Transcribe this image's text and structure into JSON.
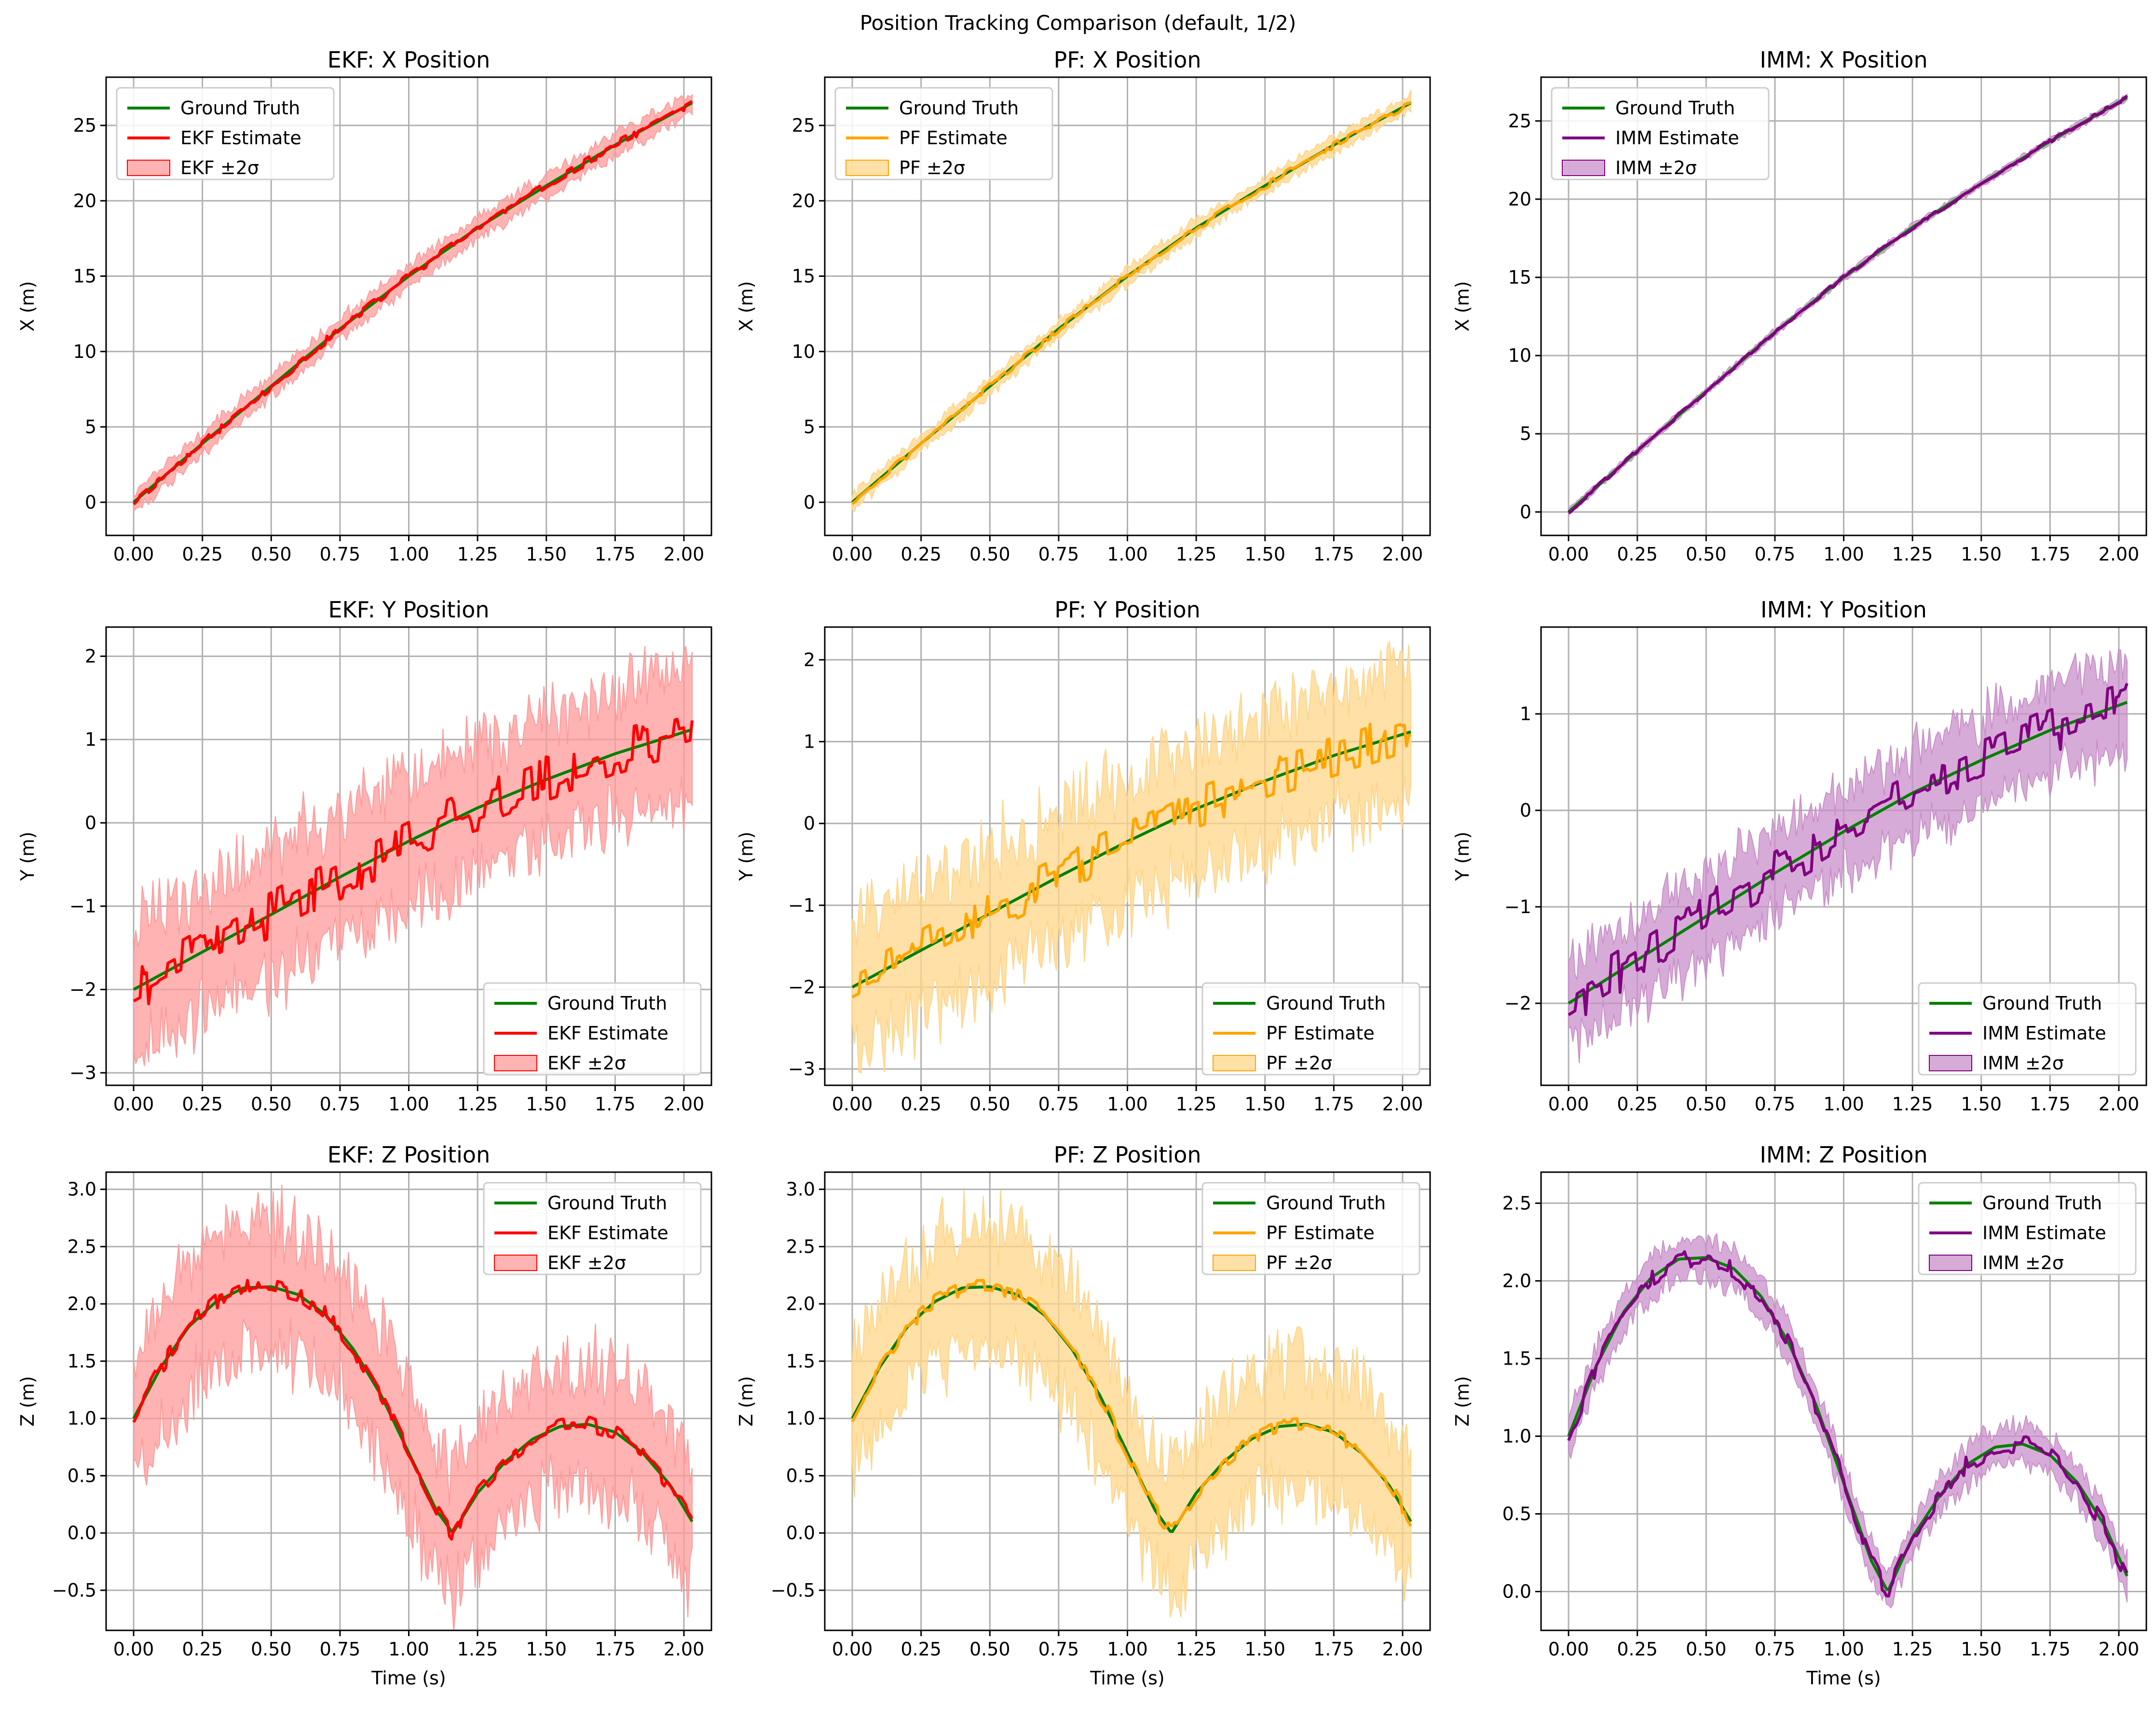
{
  "figure": {
    "suptitle": "Position Tracking Comparison (default, 1/2)"
  },
  "colors": {
    "ground_truth": "#008000",
    "EKF": "#ff0000",
    "EKF_band": "#ff9a9a",
    "PF": "#ffa500",
    "PF_band": "#ffd58a",
    "IMM": "#800080",
    "IMM_band": "#c98fc9"
  },
  "chart_data": [
    {
      "type": "line",
      "title": "EKF: X Position",
      "filter": "EKF",
      "axis": "x",
      "xlabel": "",
      "ylabel": "X (m)",
      "xlim": [
        -0.1,
        2.1
      ],
      "ylim": [
        -2.2,
        28.2
      ],
      "xticks": [
        "0.00",
        "0.25",
        "0.50",
        "0.75",
        "1.00",
        "1.25",
        "1.50",
        "1.75",
        "2.00"
      ],
      "yticks": [
        "0",
        "5",
        "10",
        "15",
        "20",
        "25"
      ],
      "legend_loc": "upper-left",
      "legend": [
        "Ground Truth",
        "EKF Estimate",
        "EKF ±2σ"
      ],
      "series": [
        {
          "name": "Ground Truth",
          "kind": "line",
          "x": [
            0,
            0.25,
            0.5,
            0.75,
            1.0,
            1.25,
            1.5,
            1.75,
            2.03
          ],
          "y": [
            0,
            3.9,
            7.7,
            11.5,
            15.0,
            18.2,
            21.0,
            23.7,
            26.5
          ]
        },
        {
          "name": "EKF Estimate",
          "kind": "noisy",
          "base": "Ground Truth",
          "noise": 0.25,
          "seed": 11
        },
        {
          "name": "EKF ±2σ",
          "kind": "band",
          "base": "Ground Truth",
          "halfwidth": 0.7,
          "seed": 12
        }
      ]
    },
    {
      "type": "line",
      "title": "PF: X Position",
      "filter": "PF",
      "axis": "x",
      "xlabel": "",
      "ylabel": "X (m)",
      "xlim": [
        -0.1,
        2.1
      ],
      "ylim": [
        -2.2,
        28.2
      ],
      "xticks": [
        "0.00",
        "0.25",
        "0.50",
        "0.75",
        "1.00",
        "1.25",
        "1.50",
        "1.75",
        "2.00"
      ],
      "yticks": [
        "0",
        "5",
        "10",
        "15",
        "20",
        "25"
      ],
      "legend_loc": "upper-left",
      "legend": [
        "Ground Truth",
        "PF Estimate",
        "PF ±2σ"
      ],
      "series": [
        {
          "name": "Ground Truth",
          "kind": "line",
          "x": [
            0,
            0.25,
            0.5,
            0.75,
            1.0,
            1.25,
            1.5,
            1.75,
            2.03
          ],
          "y": [
            0,
            3.9,
            7.7,
            11.5,
            15.0,
            18.2,
            21.0,
            23.7,
            26.5
          ]
        },
        {
          "name": "PF Estimate",
          "kind": "noisy",
          "base": "Ground Truth",
          "noise": 0.2,
          "seed": 21
        },
        {
          "name": "PF ±2σ",
          "kind": "band",
          "base": "Ground Truth",
          "halfwidth": 0.55,
          "seed": 22
        }
      ]
    },
    {
      "type": "line",
      "title": "IMM: X Position",
      "filter": "IMM",
      "axis": "x",
      "xlabel": "",
      "ylabel": "X (m)",
      "xlim": [
        -0.1,
        2.1
      ],
      "ylim": [
        -1.5,
        27.8
      ],
      "xticks": [
        "0.00",
        "0.25",
        "0.50",
        "0.75",
        "1.00",
        "1.25",
        "1.50",
        "1.75",
        "2.00"
      ],
      "yticks": [
        "0",
        "5",
        "10",
        "15",
        "20",
        "25"
      ],
      "legend_loc": "upper-left",
      "legend": [
        "Ground Truth",
        "IMM Estimate",
        "IMM ±2σ"
      ],
      "series": [
        {
          "name": "Ground Truth",
          "kind": "line",
          "x": [
            0,
            0.25,
            0.5,
            0.75,
            1.0,
            1.25,
            1.5,
            1.75,
            2.03
          ],
          "y": [
            0,
            3.9,
            7.7,
            11.5,
            15.0,
            18.2,
            21.0,
            23.7,
            26.5
          ]
        },
        {
          "name": "IMM Estimate",
          "kind": "noisy",
          "base": "Ground Truth",
          "noise": 0.12,
          "seed": 31
        },
        {
          "name": "IMM ±2σ",
          "kind": "band",
          "base": "Ground Truth",
          "halfwidth": 0.2,
          "seed": 32
        }
      ]
    },
    {
      "type": "line",
      "title": "EKF: Y Position",
      "filter": "EKF",
      "axis": "y",
      "xlabel": "",
      "ylabel": "Y (m)",
      "xlim": [
        -0.1,
        2.1
      ],
      "ylim": [
        -3.15,
        2.35
      ],
      "xticks": [
        "0.00",
        "0.25",
        "0.50",
        "0.75",
        "1.00",
        "1.25",
        "1.50",
        "1.75",
        "2.00"
      ],
      "yticks": [
        "−3",
        "−2",
        "−1",
        "0",
        "1",
        "2"
      ],
      "legend_loc": "lower-right",
      "legend": [
        "Ground Truth",
        "EKF Estimate",
        "EKF ±2σ"
      ],
      "series": [
        {
          "name": "Ground Truth",
          "kind": "line",
          "x": [
            0,
            0.25,
            0.5,
            0.75,
            1.0,
            1.25,
            1.5,
            1.75,
            2.03
          ],
          "y": [
            -2.0,
            -1.55,
            -1.1,
            -0.65,
            -0.22,
            0.18,
            0.52,
            0.83,
            1.12
          ]
        },
        {
          "name": "EKF Estimate",
          "kind": "noisy",
          "base": "Ground Truth",
          "noise": 0.28,
          "seed": 41
        },
        {
          "name": "EKF ±2σ",
          "kind": "band",
          "base": "Ground Truth",
          "halfwidth": 0.75,
          "seed": 42
        }
      ]
    },
    {
      "type": "line",
      "title": "PF: Y Position",
      "filter": "PF",
      "axis": "y",
      "xlabel": "",
      "ylabel": "Y (m)",
      "xlim": [
        -0.1,
        2.1
      ],
      "ylim": [
        -3.2,
        2.4
      ],
      "xticks": [
        "0.00",
        "0.25",
        "0.50",
        "0.75",
        "1.00",
        "1.25",
        "1.50",
        "1.75",
        "2.00"
      ],
      "yticks": [
        "−3",
        "−2",
        "−1",
        "0",
        "1",
        "2"
      ],
      "legend_loc": "lower-right",
      "legend": [
        "Ground Truth",
        "PF Estimate",
        "PF ±2σ"
      ],
      "series": [
        {
          "name": "Ground Truth",
          "kind": "line",
          "x": [
            0,
            0.25,
            0.5,
            0.75,
            1.0,
            1.25,
            1.5,
            1.75,
            2.03
          ],
          "y": [
            -2.0,
            -1.55,
            -1.1,
            -0.65,
            -0.22,
            0.18,
            0.52,
            0.83,
            1.12
          ]
        },
        {
          "name": "PF Estimate",
          "kind": "noisy",
          "base": "Ground Truth",
          "noise": 0.25,
          "seed": 51
        },
        {
          "name": "PF ±2σ",
          "kind": "band",
          "base": "Ground Truth",
          "halfwidth": 0.8,
          "seed": 52
        }
      ]
    },
    {
      "type": "line",
      "title": "IMM: Y Position",
      "filter": "IMM",
      "axis": "y",
      "xlabel": "",
      "ylabel": "Y (m)",
      "xlim": [
        -0.1,
        2.1
      ],
      "ylim": [
        -2.85,
        1.9
      ],
      "xticks": [
        "0.00",
        "0.25",
        "0.50",
        "0.75",
        "1.00",
        "1.25",
        "1.50",
        "1.75",
        "2.00"
      ],
      "yticks": [
        "−2",
        "−1",
        "0",
        "1"
      ],
      "legend_loc": "lower-right",
      "legend": [
        "Ground Truth",
        "IMM Estimate",
        "IMM ±2σ"
      ],
      "series": [
        {
          "name": "Ground Truth",
          "kind": "line",
          "x": [
            0,
            0.25,
            0.5,
            0.75,
            1.0,
            1.25,
            1.5,
            1.75,
            2.03
          ],
          "y": [
            -2.0,
            -1.55,
            -1.1,
            -0.65,
            -0.22,
            0.18,
            0.52,
            0.83,
            1.12
          ]
        },
        {
          "name": "IMM Estimate",
          "kind": "noisy",
          "base": "Ground Truth",
          "noise": 0.25,
          "seed": 61
        },
        {
          "name": "IMM ±2σ",
          "kind": "band",
          "base": "Ground Truth",
          "halfwidth": 0.45,
          "seed": 62
        }
      ]
    },
    {
      "type": "line",
      "title": "EKF: Z Position",
      "filter": "EKF",
      "axis": "z",
      "xlabel": "Time (s)",
      "ylabel": "Z (m)",
      "xlim": [
        -0.1,
        2.1
      ],
      "ylim": [
        -0.85,
        3.15
      ],
      "xticks": [
        "0.00",
        "0.25",
        "0.50",
        "0.75",
        "1.00",
        "1.25",
        "1.50",
        "1.75",
        "2.00"
      ],
      "yticks": [
        "−0.5",
        "0.0",
        "0.5",
        "1.0",
        "1.5",
        "2.0",
        "2.5",
        "3.0"
      ],
      "legend_loc": "upper-right",
      "legend": [
        "Ground Truth",
        "EKF Estimate",
        "EKF ±2σ"
      ],
      "series": [
        {
          "name": "Ground Truth",
          "kind": "line",
          "x": [
            0,
            0.1,
            0.2,
            0.3,
            0.4,
            0.5,
            0.6,
            0.7,
            0.8,
            0.9,
            1.0,
            1.1,
            1.16,
            1.25,
            1.35,
            1.45,
            1.55,
            1.65,
            1.75,
            1.85,
            1.95,
            2.03
          ],
          "y": [
            1.0,
            1.45,
            1.8,
            2.02,
            2.14,
            2.15,
            2.08,
            1.9,
            1.6,
            1.2,
            0.7,
            0.2,
            0.0,
            0.35,
            0.62,
            0.82,
            0.93,
            0.95,
            0.88,
            0.7,
            0.42,
            0.1
          ]
        },
        {
          "name": "EKF Estimate",
          "kind": "noisy",
          "base": "Ground Truth",
          "noise": 0.07,
          "seed": 71
        },
        {
          "name": "EKF ±2σ",
          "kind": "band",
          "base": "Ground Truth",
          "halfwidth": 0.55,
          "seed": 72
        }
      ]
    },
    {
      "type": "line",
      "title": "PF: Z Position",
      "filter": "PF",
      "axis": "z",
      "xlabel": "Time (s)",
      "ylabel": "Z (m)",
      "xlim": [
        -0.1,
        2.1
      ],
      "ylim": [
        -0.85,
        3.15
      ],
      "xticks": [
        "0.00",
        "0.25",
        "0.50",
        "0.75",
        "1.00",
        "1.25",
        "1.50",
        "1.75",
        "2.00"
      ],
      "yticks": [
        "−0.5",
        "0.0",
        "0.5",
        "1.0",
        "1.5",
        "2.0",
        "2.5",
        "3.0"
      ],
      "legend_loc": "upper-right",
      "legend": [
        "Ground Truth",
        "PF Estimate",
        "PF ±2σ"
      ],
      "series": [
        {
          "name": "Ground Truth",
          "kind": "line",
          "x": [
            0,
            0.1,
            0.2,
            0.3,
            0.4,
            0.5,
            0.6,
            0.7,
            0.8,
            0.9,
            1.0,
            1.1,
            1.16,
            1.25,
            1.35,
            1.45,
            1.55,
            1.65,
            1.75,
            1.85,
            1.95,
            2.03
          ],
          "y": [
            1.0,
            1.45,
            1.8,
            2.02,
            2.14,
            2.15,
            2.08,
            1.9,
            1.6,
            1.2,
            0.7,
            0.2,
            0.0,
            0.35,
            0.62,
            0.82,
            0.93,
            0.95,
            0.88,
            0.7,
            0.42,
            0.1
          ]
        },
        {
          "name": "PF Estimate",
          "kind": "noisy",
          "base": "Ground Truth",
          "noise": 0.06,
          "seed": 81
        },
        {
          "name": "PF ±2σ",
          "kind": "band",
          "base": "Ground Truth",
          "halfwidth": 0.55,
          "seed": 82
        }
      ]
    },
    {
      "type": "line",
      "title": "IMM: Z Position",
      "filter": "IMM",
      "axis": "z",
      "xlabel": "Time (s)",
      "ylabel": "Z (m)",
      "xlim": [
        -0.1,
        2.1
      ],
      "ylim": [
        -0.25,
        2.7
      ],
      "xticks": [
        "0.00",
        "0.25",
        "0.50",
        "0.75",
        "1.00",
        "1.25",
        "1.50",
        "1.75",
        "2.00"
      ],
      "yticks": [
        "0.0",
        "0.5",
        "1.0",
        "1.5",
        "2.0",
        "2.5"
      ],
      "legend_loc": "upper-right",
      "legend": [
        "Ground Truth",
        "IMM Estimate",
        "IMM ±2σ"
      ],
      "series": [
        {
          "name": "Ground Truth",
          "kind": "line",
          "x": [
            0,
            0.1,
            0.2,
            0.3,
            0.4,
            0.5,
            0.6,
            0.7,
            0.8,
            0.9,
            1.0,
            1.1,
            1.16,
            1.25,
            1.35,
            1.45,
            1.55,
            1.65,
            1.75,
            1.85,
            1.95,
            2.03
          ],
          "y": [
            1.0,
            1.45,
            1.8,
            2.02,
            2.14,
            2.15,
            2.08,
            1.9,
            1.6,
            1.2,
            0.7,
            0.2,
            0.0,
            0.35,
            0.62,
            0.82,
            0.93,
            0.95,
            0.88,
            0.7,
            0.42,
            0.1
          ]
        },
        {
          "name": "IMM Estimate",
          "kind": "noisy",
          "base": "Ground Truth",
          "noise": 0.06,
          "seed": 91
        },
        {
          "name": "IMM ±2σ",
          "kind": "band",
          "base": "Ground Truth",
          "halfwidth": 0.12,
          "seed": 92
        }
      ]
    }
  ]
}
